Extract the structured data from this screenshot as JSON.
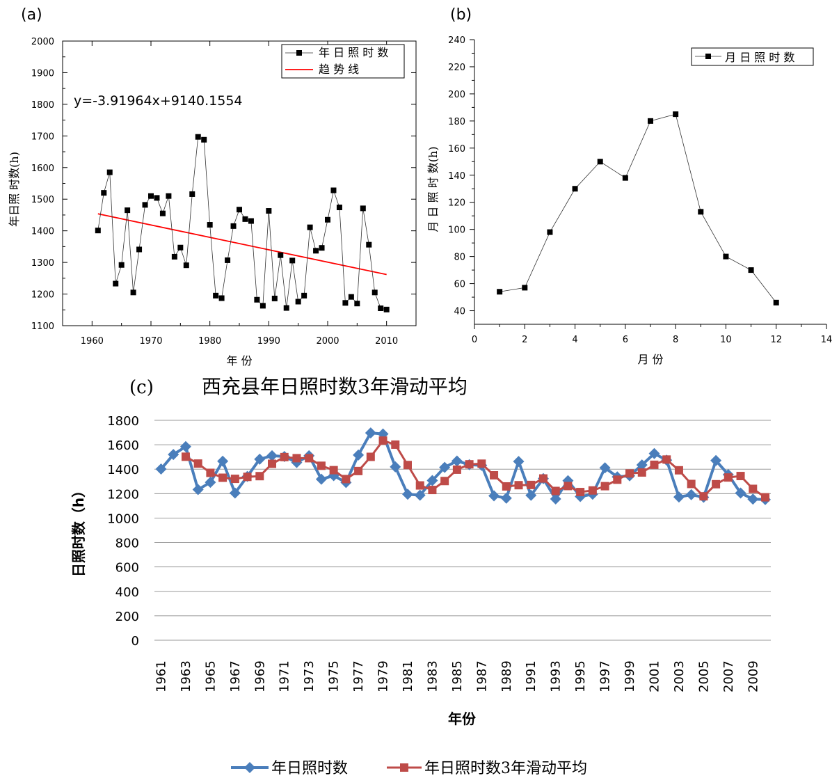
{
  "panels": {
    "a": {
      "label": "(a)",
      "xlabel": "年 份",
      "ylabel": "年日照 时数(h)",
      "equation": "y=-3.91964x+9140.1554",
      "legend": [
        "年 日 照 时 数",
        "趋 势 线"
      ],
      "xlim": [
        1955,
        2015
      ],
      "ylim": [
        1100,
        2000
      ],
      "xticks": [
        1960,
        1970,
        1980,
        1990,
        2000,
        2010
      ],
      "yticks": [
        1100,
        1200,
        1300,
        1400,
        1500,
        1600,
        1700,
        1800,
        1900,
        2000
      ]
    },
    "b": {
      "label": "(b)",
      "xlabel": "月 份",
      "ylabel": "月 日 照 时 数(h)",
      "legend": [
        "月 日 照 时 数"
      ],
      "xlim": [
        0,
        14
      ],
      "ylim": [
        30,
        240
      ],
      "xticks": [
        0,
        2,
        4,
        6,
        8,
        10,
        12,
        14
      ],
      "yticks": [
        40,
        60,
        80,
        100,
        120,
        140,
        160,
        180,
        200,
        220,
        240
      ]
    },
    "c": {
      "label": "(c)",
      "title": "西充县年日照时数3年滑动平均",
      "xlabel": "年份",
      "ylabel": "日照时数（h）",
      "legend": [
        "年日照时数",
        "年日照时数3年滑动平均"
      ],
      "ylim": [
        0,
        1800
      ],
      "yticks": [
        0,
        200,
        400,
        600,
        800,
        1000,
        1200,
        1400,
        1600,
        1800
      ],
      "xtick_labels": [
        "1961",
        "1963",
        "1965",
        "1967",
        "1969",
        "1971",
        "1973",
        "1975",
        "1977",
        "1979",
        "1981",
        "1983",
        "1985",
        "1987",
        "1989",
        "1991",
        "1993",
        "1995",
        "1997",
        "1999",
        "2001",
        "2003",
        "2005",
        "2007",
        "2009"
      ]
    }
  },
  "colors": {
    "annual_series_c": "#4a7ebb",
    "moving_avg": "#be4b48",
    "trend_line": "#ff0000",
    "markers_ab": "#000000"
  },
  "chart_data": [
    {
      "type": "line",
      "panel": "a",
      "x": [
        1961,
        1962,
        1963,
        1964,
        1965,
        1966,
        1967,
        1968,
        1969,
        1970,
        1971,
        1972,
        1973,
        1974,
        1975,
        1976,
        1977,
        1978,
        1979,
        1980,
        1981,
        1982,
        1983,
        1984,
        1985,
        1986,
        1987,
        1988,
        1989,
        1990,
        1991,
        1992,
        1993,
        1994,
        1995,
        1996,
        1997,
        1998,
        1999,
        2000,
        2001,
        2002,
        2003,
        2004,
        2005,
        2006,
        2007,
        2008,
        2009,
        2010
      ],
      "series": [
        {
          "name": "年 日 照 时 数",
          "values": [
            1401,
            1520,
            1585,
            1233,
            1292,
            1465,
            1205,
            1341,
            1482,
            1510,
            1504,
            1455,
            1510,
            1318,
            1347,
            1291,
            1516,
            1697,
            1688,
            1419,
            1195,
            1187,
            1307,
            1415,
            1467,
            1437,
            1431,
            1182,
            1163,
            1463,
            1186,
            1323,
            1156,
            1306,
            1176,
            1195,
            1411,
            1337,
            1346,
            1435,
            1528,
            1474,
            1172,
            1191,
            1170,
            1471,
            1356,
            1205,
            1155,
            1151
          ]
        },
        {
          "name": "趋 势 线",
          "equation": "y=-3.91964x+9140.1554",
          "x_range": [
            1961,
            2010
          ]
        }
      ],
      "xlabel": "年 份",
      "ylabel": "年日照 时数(h)",
      "xlim": [
        1955,
        2015
      ],
      "ylim": [
        1100,
        2000
      ],
      "legend_position": "top-right"
    },
    {
      "type": "line",
      "panel": "b",
      "x": [
        1,
        2,
        3,
        4,
        5,
        6,
        7,
        8,
        9,
        10,
        11,
        12
      ],
      "series": [
        {
          "name": "月 日 照 时 数",
          "values": [
            54,
            57,
            98,
            130,
            150,
            138,
            180,
            185,
            113,
            80,
            70,
            46
          ]
        }
      ],
      "xlabel": "月 份",
      "ylabel": "月 日 照 时 数(h)",
      "xlim": [
        0,
        14
      ],
      "ylim": [
        30,
        240
      ],
      "legend_position": "top-right"
    },
    {
      "type": "line",
      "panel": "c",
      "title": "西充县年日照时数3年滑动平均",
      "x": [
        1961,
        1962,
        1963,
        1964,
        1965,
        1966,
        1967,
        1968,
        1969,
        1970,
        1971,
        1972,
        1973,
        1974,
        1975,
        1976,
        1977,
        1978,
        1979,
        1980,
        1981,
        1982,
        1983,
        1984,
        1985,
        1986,
        1987,
        1988,
        1989,
        1990,
        1991,
        1992,
        1993,
        1994,
        1995,
        1996,
        1997,
        1998,
        1999,
        2000,
        2001,
        2002,
        2003,
        2004,
        2005,
        2006,
        2007,
        2008,
        2009,
        2010
      ],
      "series": [
        {
          "name": "年日照时数",
          "values": [
            1401,
            1520,
            1585,
            1233,
            1292,
            1465,
            1205,
            1341,
            1482,
            1510,
            1504,
            1455,
            1510,
            1318,
            1347,
            1291,
            1516,
            1697,
            1688,
            1419,
            1195,
            1187,
            1307,
            1415,
            1467,
            1437,
            1431,
            1182,
            1163,
            1463,
            1186,
            1323,
            1156,
            1306,
            1176,
            1195,
            1411,
            1337,
            1346,
            1435,
            1528,
            1474,
            1172,
            1191,
            1170,
            1471,
            1356,
            1205,
            1155,
            1151
          ]
        },
        {
          "name": "年日照时数3年滑动平均",
          "x": [
            1963,
            1964,
            1965,
            1966,
            1967,
            1968,
            1969,
            1970,
            1971,
            1972,
            1973,
            1974,
            1975,
            1976,
            1977,
            1978,
            1979,
            1980,
            1981,
            1982,
            1983,
            1984,
            1985,
            1986,
            1987,
            1988,
            1989,
            1990,
            1991,
            1992,
            1993,
            1994,
            1995,
            1996,
            1997,
            1998,
            1999,
            2000,
            2001,
            2002,
            2003,
            2004,
            2005,
            2006,
            2007,
            2008,
            2009,
            2010
          ],
          "values": [
            1502,
            1446,
            1370,
            1330,
            1321,
            1337,
            1343,
            1444,
            1499,
            1490,
            1490,
            1428,
            1392,
            1319,
            1385,
            1501,
            1634,
            1601,
            1434,
            1267,
            1230,
            1303,
            1396,
            1440,
            1445,
            1350,
            1259,
            1269,
            1271,
            1324,
            1222,
            1262,
            1213,
            1226,
            1261,
            1314,
            1365,
            1373,
            1436,
            1479,
            1391,
            1279,
            1178,
            1277,
            1332,
            1344,
            1239,
            1170
          ]
        }
      ],
      "xlabel": "年份",
      "ylabel": "日照时数（h）",
      "ylim": [
        0,
        1800
      ],
      "grid": true,
      "legend_position": "bottom"
    }
  ]
}
